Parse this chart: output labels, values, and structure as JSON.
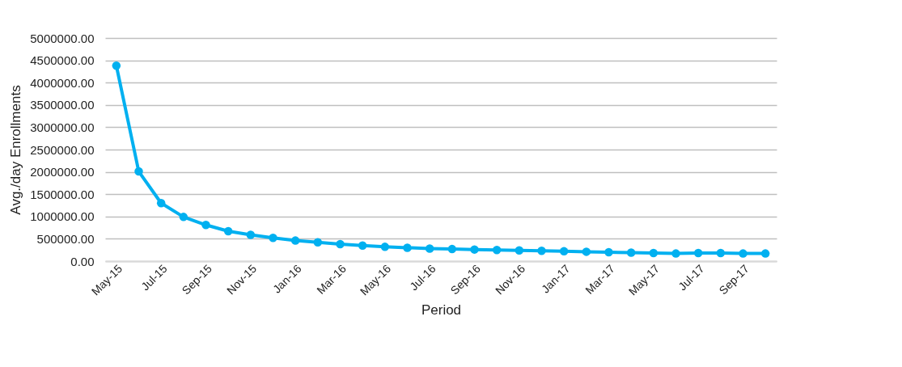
{
  "chart_data": {
    "type": "line",
    "xlabel": "Period",
    "ylabel": "Avg./day Enrollments",
    "categories": [
      "May-15",
      null,
      "Jul-15",
      null,
      "Sep-15",
      null,
      "Nov-15",
      null,
      "Jan-16",
      null,
      "Mar-16",
      null,
      "May-16",
      null,
      "Jul-16",
      null,
      "Sep-16",
      null,
      "Nov-16",
      null,
      "Jan-17",
      null,
      "Mar-17",
      null,
      "May-17",
      null,
      "Jul-17",
      null,
      "Sep-17",
      null
    ],
    "series": [
      {
        "color": "#00b0f0",
        "values": [
          4380000,
          2010000,
          1300000,
          990000,
          810000,
          670000,
          590000,
          520000,
          460000,
          420000,
          380000,
          350000,
          320000,
          300000,
          280000,
          270000,
          260000,
          250000,
          240000,
          230000,
          220000,
          210000,
          200000,
          190000,
          180000,
          170000,
          180000,
          180000,
          170000,
          170000
        ]
      }
    ],
    "ylim": [
      0,
      5000000
    ],
    "yticks": [
      {
        "value": 0,
        "label": "0.00"
      },
      {
        "value": 500000,
        "label": "500000.00"
      },
      {
        "value": 1000000,
        "label": "1000000.00"
      },
      {
        "value": 1500000,
        "label": "1500000.00"
      },
      {
        "value": 2000000,
        "label": "2000000.00"
      },
      {
        "value": 2500000,
        "label": "2500000.00"
      },
      {
        "value": 3000000,
        "label": "3000000.00"
      },
      {
        "value": 3500000,
        "label": "3500000.00"
      },
      {
        "value": 4000000,
        "label": "4000000.00"
      },
      {
        "value": 4500000,
        "label": "4500000.00"
      },
      {
        "value": 5000000,
        "label": "5000000.00"
      }
    ],
    "grid": "y",
    "marker": "circle",
    "line_style": "solid",
    "legend": false
  }
}
